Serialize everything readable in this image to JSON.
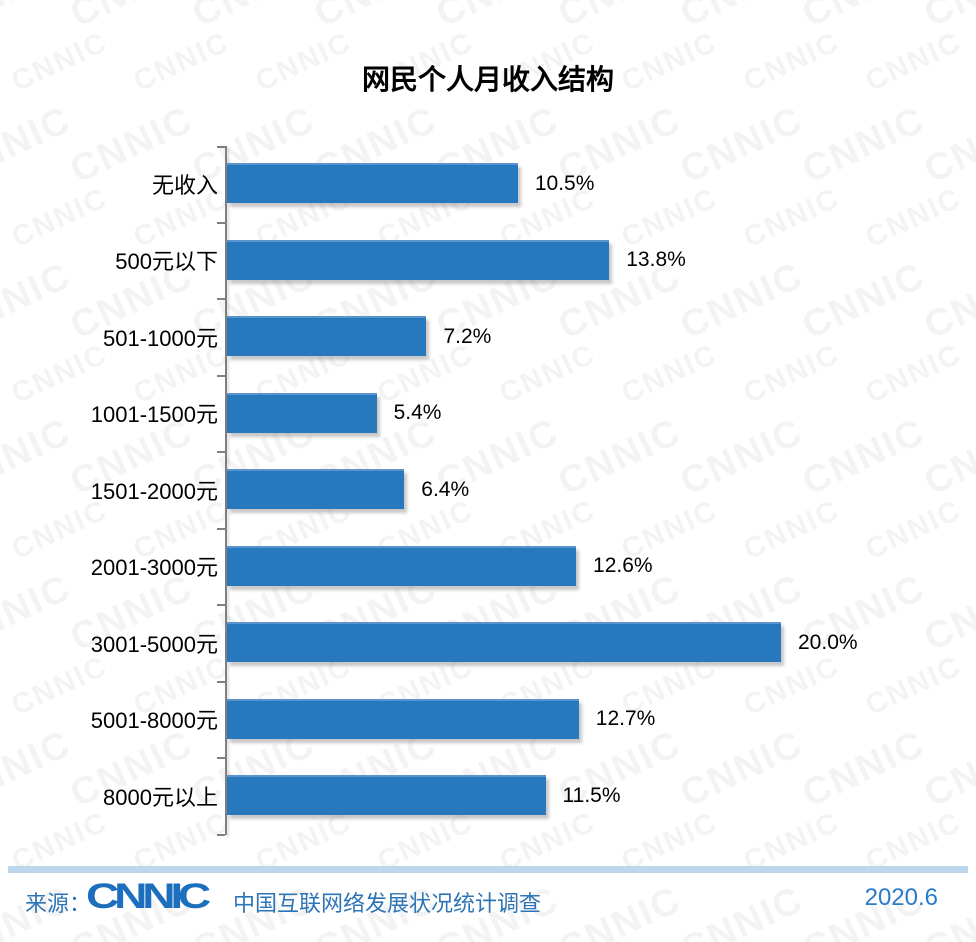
{
  "title": "网民个人月收入结构",
  "chart_data": {
    "type": "bar",
    "orientation": "horizontal",
    "title": "网民个人月收入结构",
    "categories": [
      "无收入",
      "500元以下",
      "501-1000元",
      "1001-1500元",
      "1501-2000元",
      "2001-3000元",
      "3001-5000元",
      "5001-8000元",
      "8000元以上"
    ],
    "values": [
      10.5,
      13.8,
      7.2,
      5.4,
      6.4,
      12.6,
      20.0,
      12.7,
      11.5
    ],
    "value_labels": [
      "10.5%",
      "13.8%",
      "7.2%",
      "5.4%",
      "6.4%",
      "12.6%",
      "20.0%",
      "12.7%",
      "11.5%"
    ],
    "xlabel": "",
    "ylabel": "",
    "xlim": [
      0,
      21.5
    ],
    "grid": false,
    "legend": "none",
    "bar_color": "#2878BE",
    "axis_color": "#7f7f7f"
  },
  "watermark": {
    "text": "CNNIC"
  },
  "footer": {
    "source_prefix": "来源：",
    "logo_text": "CNNIC",
    "source_text": "中国互联网络发展状况统计调查",
    "date": "2020.6",
    "text_color": "#2E75B5",
    "divider_color": "#BCD6EE"
  }
}
